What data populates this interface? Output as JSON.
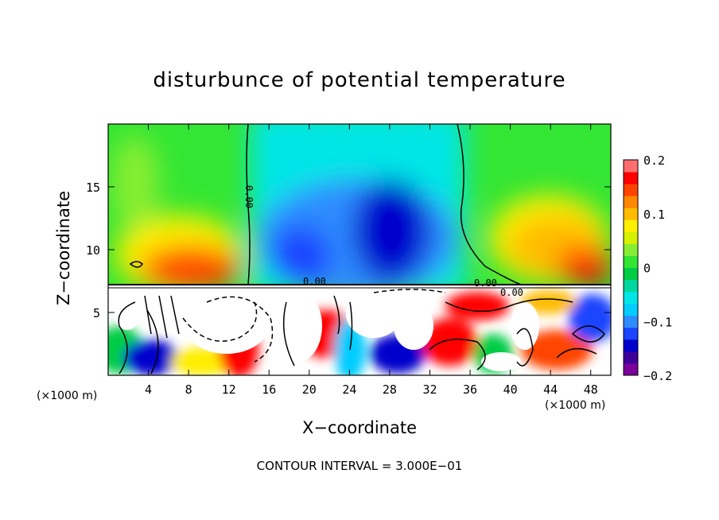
{
  "chart_data": {
    "type": "heatmap",
    "title": "disturbunce of potential temperature",
    "xlabel": "X−coordinate",
    "ylabel": "Z−coordinate",
    "x_unit": "(×1000 m)",
    "x_ticks": [
      4,
      8,
      12,
      16,
      20,
      24,
      28,
      32,
      36,
      40,
      44,
      48
    ],
    "xlim": [
      0,
      50
    ],
    "y_ticks": [
      5,
      10,
      15
    ],
    "ylim": [
      0,
      20
    ],
    "colorbar": {
      "ticks": [
        "0.2",
        "0.1",
        "0",
        "−0.1",
        "−0.2"
      ],
      "tick_values": [
        0.2,
        0.1,
        0,
        -0.1,
        -0.2
      ],
      "range": [
        -0.2,
        0.2
      ],
      "colors": [
        "#7b0099",
        "#3d0099",
        "#0000cc",
        "#1a44ff",
        "#2f8cff",
        "#00ccff",
        "#00e6e6",
        "#00d6a0",
        "#00cc44",
        "#33e633",
        "#88ee33",
        "#d6f000",
        "#ffee00",
        "#ffbb00",
        "#ff8800",
        "#ff4400",
        "#ff0000",
        "#ff6e6e"
      ]
    },
    "contour_labels": [
      "0.00",
      "0.00",
      "0.00",
      "0.00"
    ],
    "footer": "CONTOUR INTERVAL = 3.000E−01"
  }
}
